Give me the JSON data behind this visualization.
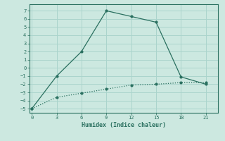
{
  "xlabel": "Humidex (Indice chaleur)",
  "bg_color": "#cce8e0",
  "grid_color": "#aad4cc",
  "line_color": "#2a7060",
  "line1_x": [
    0,
    3,
    6,
    9,
    12,
    15,
    18,
    21
  ],
  "line1_y": [
    -5,
    -1,
    2,
    7,
    6.3,
    5.6,
    -1.1,
    -2.0
  ],
  "line2_x": [
    0,
    3,
    6,
    9,
    12,
    15,
    18,
    21
  ],
  "line2_y": [
    -5,
    -3.6,
    -3.1,
    -2.6,
    -2.1,
    -2.0,
    -1.8,
    -1.8
  ],
  "xlim": [
    -0.3,
    22.5
  ],
  "ylim": [
    -5.5,
    7.8
  ],
  "xticks": [
    0,
    3,
    6,
    9,
    12,
    15,
    18,
    21
  ],
  "yticks": [
    -5,
    -4,
    -3,
    -2,
    -1,
    0,
    1,
    2,
    3,
    4,
    5,
    6,
    7
  ]
}
